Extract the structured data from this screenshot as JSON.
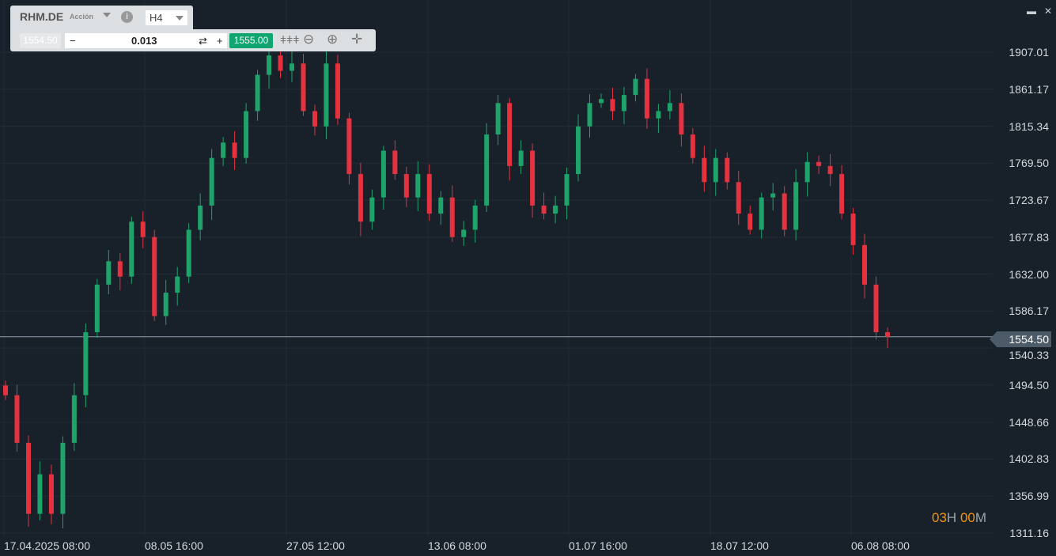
{
  "toolbar": {
    "symbol": "RHM.DE",
    "type": "Acción",
    "timeframe": "H4",
    "sell_price": "1554.50",
    "quantity": "0.013",
    "minus": "−",
    "plus": "+",
    "swap": "⇄",
    "buy_price": "1555.00",
    "tools": [
      "candles-icon",
      "zoom-out-icon",
      "zoom-in-icon",
      "move-icon"
    ]
  },
  "window": {
    "minimize": "▬",
    "close": "✕"
  },
  "timer": {
    "h": "03",
    "hl": "H",
    "m": "00",
    "ml": "M"
  },
  "colors": {
    "up": "#1fa36b",
    "down": "#e5323f",
    "timer": "#f0950c"
  },
  "chart_data": {
    "type": "candlestick",
    "y_ticks": [
      "1907.01",
      "1861.17",
      "1815.34",
      "1769.50",
      "1723.67",
      "1677.83",
      "1632.00",
      "1586.17",
      "1540.33",
      "1494.50",
      "1448.66",
      "1402.83",
      "1356.99",
      "1311.16"
    ],
    "ylim": [
      1311.16,
      1907.01
    ],
    "x_ticks": [
      "17.04.2025 08:00",
      "08.05 16:00",
      "27.05 12:00",
      "13.06 08:00",
      "01.07 16:00",
      "18.07 12:00",
      "06.08 08:00"
    ],
    "current_price": "1554.50",
    "closes": [
      1482,
      1423,
      1335,
      1384,
      1335,
      1423,
      1482,
      1560,
      1619,
      1648,
      1629,
      1697,
      1678,
      1580,
      1609,
      1629,
      1687,
      1717,
      1776,
      1795,
      1776,
      1834,
      1879,
      1903,
      1884,
      1893,
      1834,
      1815,
      1893,
      1825,
      1756,
      1697,
      1727,
      1785,
      1756,
      1727,
      1756,
      1707,
      1727,
      1678,
      1687,
      1717,
      1805,
      1844,
      1766,
      1785,
      1717,
      1707,
      1717,
      1756,
      1815,
      1844,
      1849,
      1834,
      1854,
      1874,
      1825,
      1834,
      1844,
      1805,
      1776,
      1746,
      1776,
      1746,
      1707,
      1687,
      1727,
      1732,
      1687,
      1746,
      1771,
      1766,
      1756,
      1707,
      1668,
      1619,
      1560,
      1554.5
    ]
  }
}
